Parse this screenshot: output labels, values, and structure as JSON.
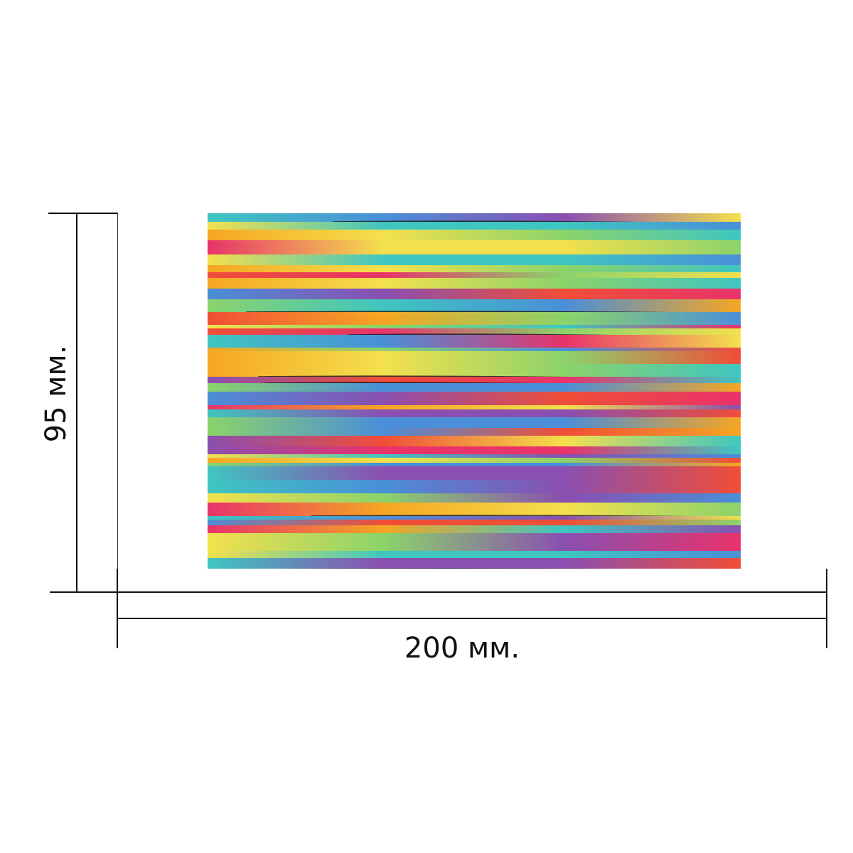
{
  "dimensions": {
    "width_label": "200 мм.",
    "height_label": "95 мм."
  },
  "product": {
    "pattern": "rainbow-horizontal-streaks",
    "colors": [
      "#e8336b",
      "#f5a623",
      "#f4e04d",
      "#8bd36b",
      "#3fc6c0",
      "#4a8fd8",
      "#8a4fb0",
      "#f04e37"
    ]
  }
}
